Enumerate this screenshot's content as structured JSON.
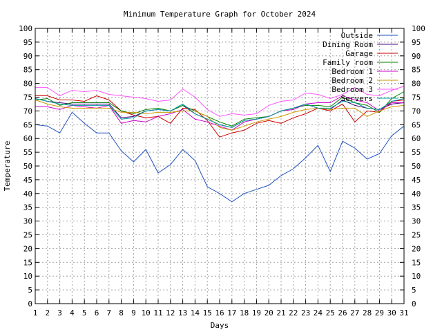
{
  "chart_data": {
    "type": "line",
    "title": "Minimum Temperature Graph for October 2024",
    "xlabel": "Days",
    "ylabel": "Temperature",
    "xlim": [
      1,
      31
    ],
    "ylim": [
      0,
      100
    ],
    "x_ticks": [
      1,
      2,
      3,
      4,
      5,
      6,
      7,
      8,
      9,
      10,
      11,
      12,
      13,
      14,
      15,
      16,
      17,
      18,
      19,
      20,
      21,
      22,
      23,
      24,
      25,
      26,
      27,
      28,
      29,
      30,
      31
    ],
    "y_ticks": [
      0,
      5,
      10,
      15,
      20,
      25,
      30,
      35,
      40,
      45,
      50,
      55,
      60,
      65,
      70,
      75,
      80,
      85,
      90,
      95,
      100
    ],
    "grid": true,
    "legend_position": "top-right",
    "x": [
      1,
      2,
      3,
      4,
      5,
      6,
      7,
      8,
      9,
      10,
      11,
      12,
      13,
      14,
      15,
      16,
      17,
      18,
      19,
      20,
      21,
      22,
      23,
      24,
      25,
      26,
      27,
      28,
      29,
      30,
      31
    ],
    "series": [
      {
        "name": "Outside",
        "color": "#1f4fc0",
        "values": [
          65,
          64.5,
          62,
          69.5,
          65.5,
          62,
          62,
          55.5,
          51.5,
          56,
          47.5,
          50.5,
          56,
          52,
          42.5,
          40,
          37,
          40,
          41.5,
          43,
          46.5,
          49,
          53,
          57.5,
          48,
          59,
          56.5,
          52.5,
          54.5,
          61,
          64.5
        ]
      },
      {
        "name": "Dining Room",
        "color": "#4b0082",
        "values": [
          74.5,
          73.5,
          73,
          72.5,
          72.5,
          72.5,
          72.5,
          67.5,
          68,
          70,
          70.5,
          70,
          72,
          69,
          67,
          65,
          64,
          66.5,
          67,
          68,
          70,
          71,
          72.5,
          71,
          70.5,
          74,
          72,
          71,
          70.5,
          72.5,
          73
        ]
      },
      {
        "name": "Garage",
        "color": "#cc0000",
        "values": [
          75.5,
          75.5,
          74,
          74,
          73.5,
          75.5,
          74,
          70,
          68.5,
          67.5,
          68,
          65.5,
          71,
          70.5,
          66.5,
          60.5,
          62,
          63,
          65.5,
          66.5,
          65.5,
          67.5,
          69,
          71,
          70,
          72.5,
          66,
          70,
          69.5,
          73.5,
          74
        ]
      },
      {
        "name": "Family room",
        "color": "#008000",
        "values": [
          74,
          74.5,
          72,
          73,
          73,
          73,
          73,
          70,
          69,
          70.5,
          71,
          70,
          72,
          70,
          68,
          66,
          64.5,
          67,
          67.5,
          68,
          70,
          71,
          72,
          72,
          71.5,
          75,
          73,
          72,
          69.5,
          74.5,
          77
        ]
      },
      {
        "name": "Bedroom 1",
        "color": "#cc00cc",
        "values": [
          71.5,
          71.5,
          70.5,
          72,
          71.5,
          71,
          72,
          65.5,
          66.5,
          66,
          68,
          69,
          70.5,
          67,
          66,
          64.5,
          63,
          66,
          67,
          68,
          70,
          70.5,
          72.5,
          73,
          73,
          75.5,
          74,
          73,
          70,
          73,
          73
        ]
      },
      {
        "name": "Bedroom 2",
        "color": "#cc9900",
        "values": [
          74,
          72.5,
          71.5,
          71,
          71,
          71,
          71,
          69.5,
          69.5,
          69,
          69.5,
          69.5,
          70,
          70,
          68,
          64,
          63,
          64.5,
          66,
          67,
          68,
          69.5,
          70.5,
          71,
          70.5,
          71,
          71,
          68,
          70,
          71.5,
          72
        ]
      },
      {
        "name": "Bedroom 3",
        "color": "#ff55ff",
        "values": [
          78.5,
          78.5,
          75.5,
          77.5,
          77,
          77.5,
          76,
          75.5,
          75,
          74.5,
          73.5,
          74,
          78,
          75,
          70.5,
          68,
          69,
          68.5,
          69,
          72,
          73.5,
          74,
          76.5,
          76,
          74.5,
          76,
          78.5,
          76,
          75.5,
          77.5,
          79
        ]
      },
      {
        "name": "Servers",
        "color": "#00a0a0",
        "values": [
          74.5,
          73.5,
          72.5,
          72,
          72,
          72,
          72,
          67,
          67.5,
          70,
          70.5,
          70,
          72.5,
          69,
          67,
          65,
          64,
          66.5,
          67,
          68,
          70,
          71,
          72.5,
          71,
          71,
          73.5,
          73,
          71,
          70.5,
          73.5,
          74.5
        ]
      }
    ]
  }
}
